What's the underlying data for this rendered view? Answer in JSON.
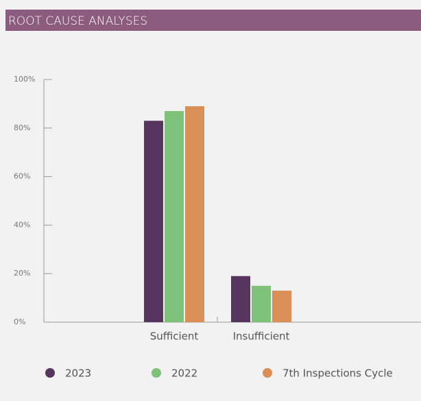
{
  "chart_data": {
    "type": "bar",
    "title": "ROOT CAUSE ANALYSES",
    "categories": [
      "Sufficient",
      "Insufficient"
    ],
    "series": [
      {
        "name": "2023",
        "color": "#56365e",
        "values": [
          83,
          19
        ]
      },
      {
        "name": "2022",
        "color": "#7fc27a",
        "values": [
          87,
          15
        ]
      },
      {
        "name": "7th Inspections Cycle",
        "color": "#d98f55",
        "values": [
          89,
          13
        ]
      }
    ],
    "ylim": [
      0,
      100
    ],
    "yticks": [
      {
        "value": 0,
        "label": "0%"
      },
      {
        "value": 20,
        "label": "20%"
      },
      {
        "value": 40,
        "label": "40%"
      },
      {
        "value": 60,
        "label": "60%"
      },
      {
        "value": 80,
        "label": "80%"
      },
      {
        "value": 100,
        "label": "100%"
      }
    ],
    "legend": "bottom"
  }
}
